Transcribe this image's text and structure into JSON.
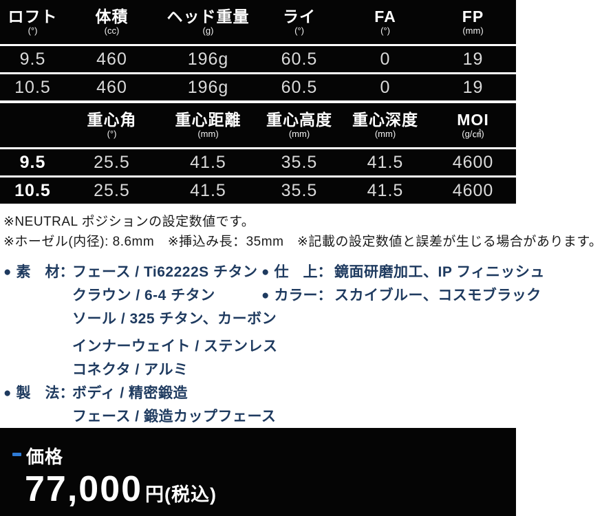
{
  "colors": {
    "table_bg": "#050505",
    "divider": "#ffffff",
    "header_text": "#ffffff",
    "cell_text": "#dadada",
    "note_text": "#1a1a1a",
    "spec_text": "#1e3a5f",
    "accent_blue": "#2e7bd6",
    "price_bar_bg": "#050505"
  },
  "table1": {
    "headers": [
      {
        "label": "ロフト",
        "unit": "(°)"
      },
      {
        "label": "体積",
        "unit": "(cc)"
      },
      {
        "label": "ヘッド重量",
        "unit": "(g)"
      },
      {
        "label": "ライ",
        "unit": "(°)"
      },
      {
        "label": "FA",
        "unit": "(°)"
      },
      {
        "label": "FP",
        "unit": "(mm)"
      }
    ],
    "rows": [
      [
        "9.5",
        "460",
        "196g",
        "60.5",
        "0",
        "19"
      ],
      [
        "10.5",
        "460",
        "196g",
        "60.5",
        "0",
        "19"
      ]
    ]
  },
  "table2": {
    "headers": [
      {
        "label": "",
        "unit": ""
      },
      {
        "label": "重心角",
        "unit": "(°)"
      },
      {
        "label": "重心距離",
        "unit": "(mm)"
      },
      {
        "label": "重心高度",
        "unit": "(mm)"
      },
      {
        "label": "重心深度",
        "unit": "(mm)"
      },
      {
        "label": "MOI",
        "unit": "(g/㎠)"
      }
    ],
    "rows": [
      [
        "9.5",
        "25.5",
        "41.5",
        "35.5",
        "41.5",
        "4600"
      ],
      [
        "10.5",
        "25.5",
        "41.5",
        "35.5",
        "41.5",
        "4600"
      ]
    ]
  },
  "notes": [
    "※NEUTRAL ポジションの設定数値です。",
    "※ホーゼル(内径): 8.6mm　※挿込み長：35mm　※記載の設定数値と誤差が生じる場合があります。"
  ],
  "specs": {
    "left": [
      {
        "bullet": "●",
        "label": "素　材：",
        "value": "フェース / Ti62222S チタン",
        "gap": false
      },
      {
        "bullet": "",
        "label": "",
        "value": "クラウン / 6-4 チタン",
        "gap": false
      },
      {
        "bullet": "",
        "label": "",
        "value": "ソール / 325 チタン、カーボン",
        "gap": false
      },
      {
        "bullet": "",
        "label": "",
        "value": "インナーウェイト / ステンレス",
        "gap": true
      },
      {
        "bullet": "",
        "label": "",
        "value": "コネクタ / アルミ",
        "gap": false
      },
      {
        "bullet": "●",
        "label": "製　法：",
        "value": "ボディ / 精密鍛造",
        "gap": false
      },
      {
        "bullet": "",
        "label": "",
        "value": "フェース / 鍛造カップフェース",
        "gap": false
      }
    ],
    "right": [
      {
        "bullet": "●",
        "label": "仕　上：",
        "value": "鏡面研磨加工、IP フィニッシュ",
        "gap": false
      },
      {
        "bullet": "●",
        "label": "カラー：",
        "value": "スカイブルー、コスモブラック",
        "gap": false
      }
    ]
  },
  "price": {
    "label": "価格",
    "amount": "77,000",
    "suffix": "円(税込)"
  }
}
